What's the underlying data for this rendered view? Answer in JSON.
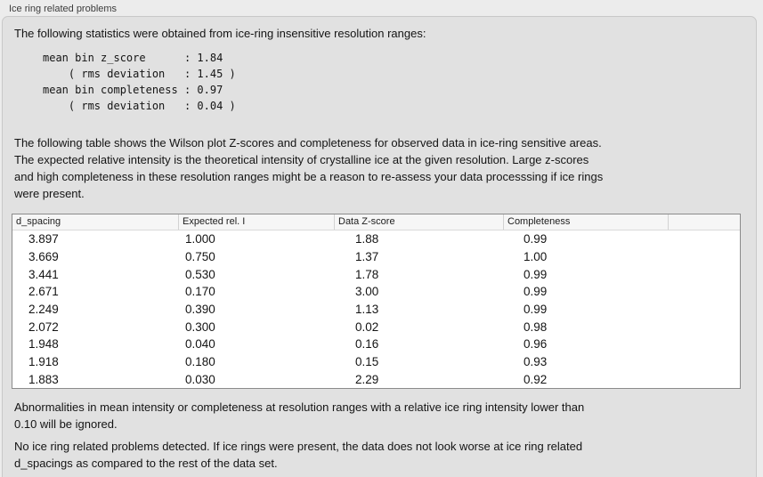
{
  "panel": {
    "title": "Ice ring related problems"
  },
  "intro": "The following statistics were obtained from ice-ring insensitive resolution ranges:",
  "stats_block": "mean bin z_score      : 1.84\n    ( rms deviation   : 1.45 )\nmean bin completeness : 0.97\n    ( rms deviation   : 0.04 )",
  "stats": {
    "mean_bin_z_score": "1.84",
    "z_score_rms_deviation": "1.45",
    "mean_bin_completeness": "0.97",
    "completeness_rms_deviation": "0.04"
  },
  "table_description": "The following table shows the Wilson plot Z-scores and completeness for observed data in ice-ring sensitive areas.\nThe expected relative intensity is the theoretical intensity of crystalline ice at the given resolution. Large z-scores\nand high completeness in these resolution ranges might be a reason to re-assess your data processsing if ice rings\nwere present.",
  "table": {
    "columns": [
      "d_spacing",
      "Expected rel. I",
      "Data Z-score",
      "Completeness"
    ],
    "rows": [
      [
        "3.897",
        "1.000",
        "1.88",
        "0.99"
      ],
      [
        "3.669",
        "0.750",
        "1.37",
        "1.00"
      ],
      [
        "3.441",
        "0.530",
        "1.78",
        "0.99"
      ],
      [
        "2.671",
        "0.170",
        "3.00",
        "0.99"
      ],
      [
        "2.249",
        "0.390",
        "1.13",
        "0.99"
      ],
      [
        "2.072",
        "0.300",
        "0.02",
        "0.98"
      ],
      [
        "1.948",
        "0.040",
        "0.16",
        "0.96"
      ],
      [
        "1.918",
        "0.180",
        "0.15",
        "0.93"
      ],
      [
        "1.883",
        "0.030",
        "2.29",
        "0.92"
      ]
    ]
  },
  "note_ignore": "Abnormalities in mean intensity or completeness at resolution ranges with a relative ice ring intensity lower than\n0.10 will be ignored.",
  "conclusion": "No ice ring related problems detected. If ice rings were present, the data does not look worse at ice ring related\nd_spacings as compared to the rest of the data set.",
  "colors": {
    "outer_bg": "#ececec",
    "panel_bg": "#e1e1e1",
    "panel_border": "#c8c8c8",
    "table_bg": "#ffffff",
    "table_border": "#8b8b8b",
    "table_header_bg": "#f6f6f6",
    "text": "#141414",
    "title_text": "#3c3c3c"
  }
}
